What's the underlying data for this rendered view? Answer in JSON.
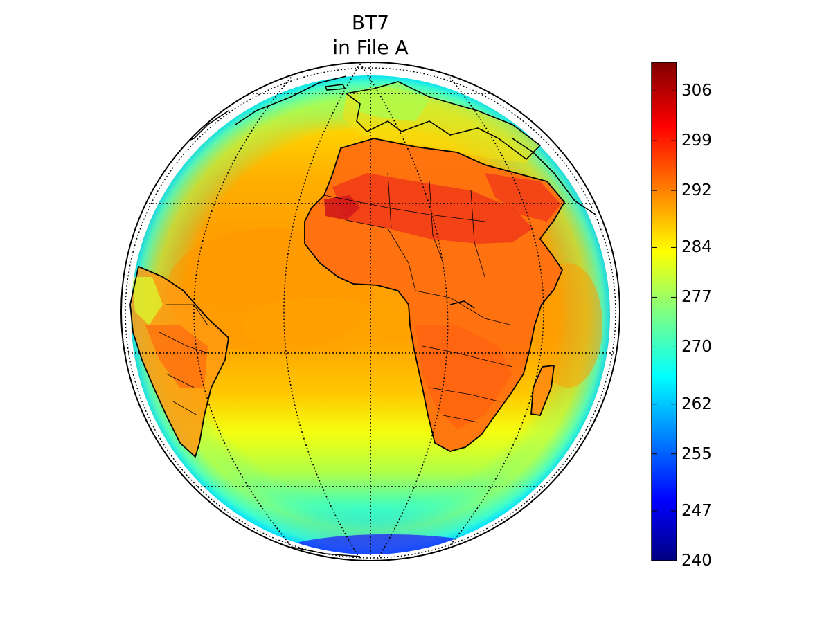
{
  "title": {
    "line1": "BT7",
    "line2": "in File A"
  },
  "map": {
    "projection": "orthographic",
    "graticule": "dotted",
    "field": "BT7"
  },
  "colorbar": {
    "colormap": "jet",
    "min": 240,
    "max": 310,
    "tick_labels": [
      "240",
      "247",
      "255",
      "262",
      "270",
      "277",
      "284",
      "292",
      "299",
      "306"
    ],
    "tick_values": [
      240,
      247,
      255,
      262,
      270,
      277,
      284,
      292,
      299,
      306
    ]
  },
  "colors": {
    "ocean_warm": "#ffa500",
    "land_hot": "#e8301e",
    "polar_cold": "#2020ff",
    "coastline": "#000000"
  }
}
